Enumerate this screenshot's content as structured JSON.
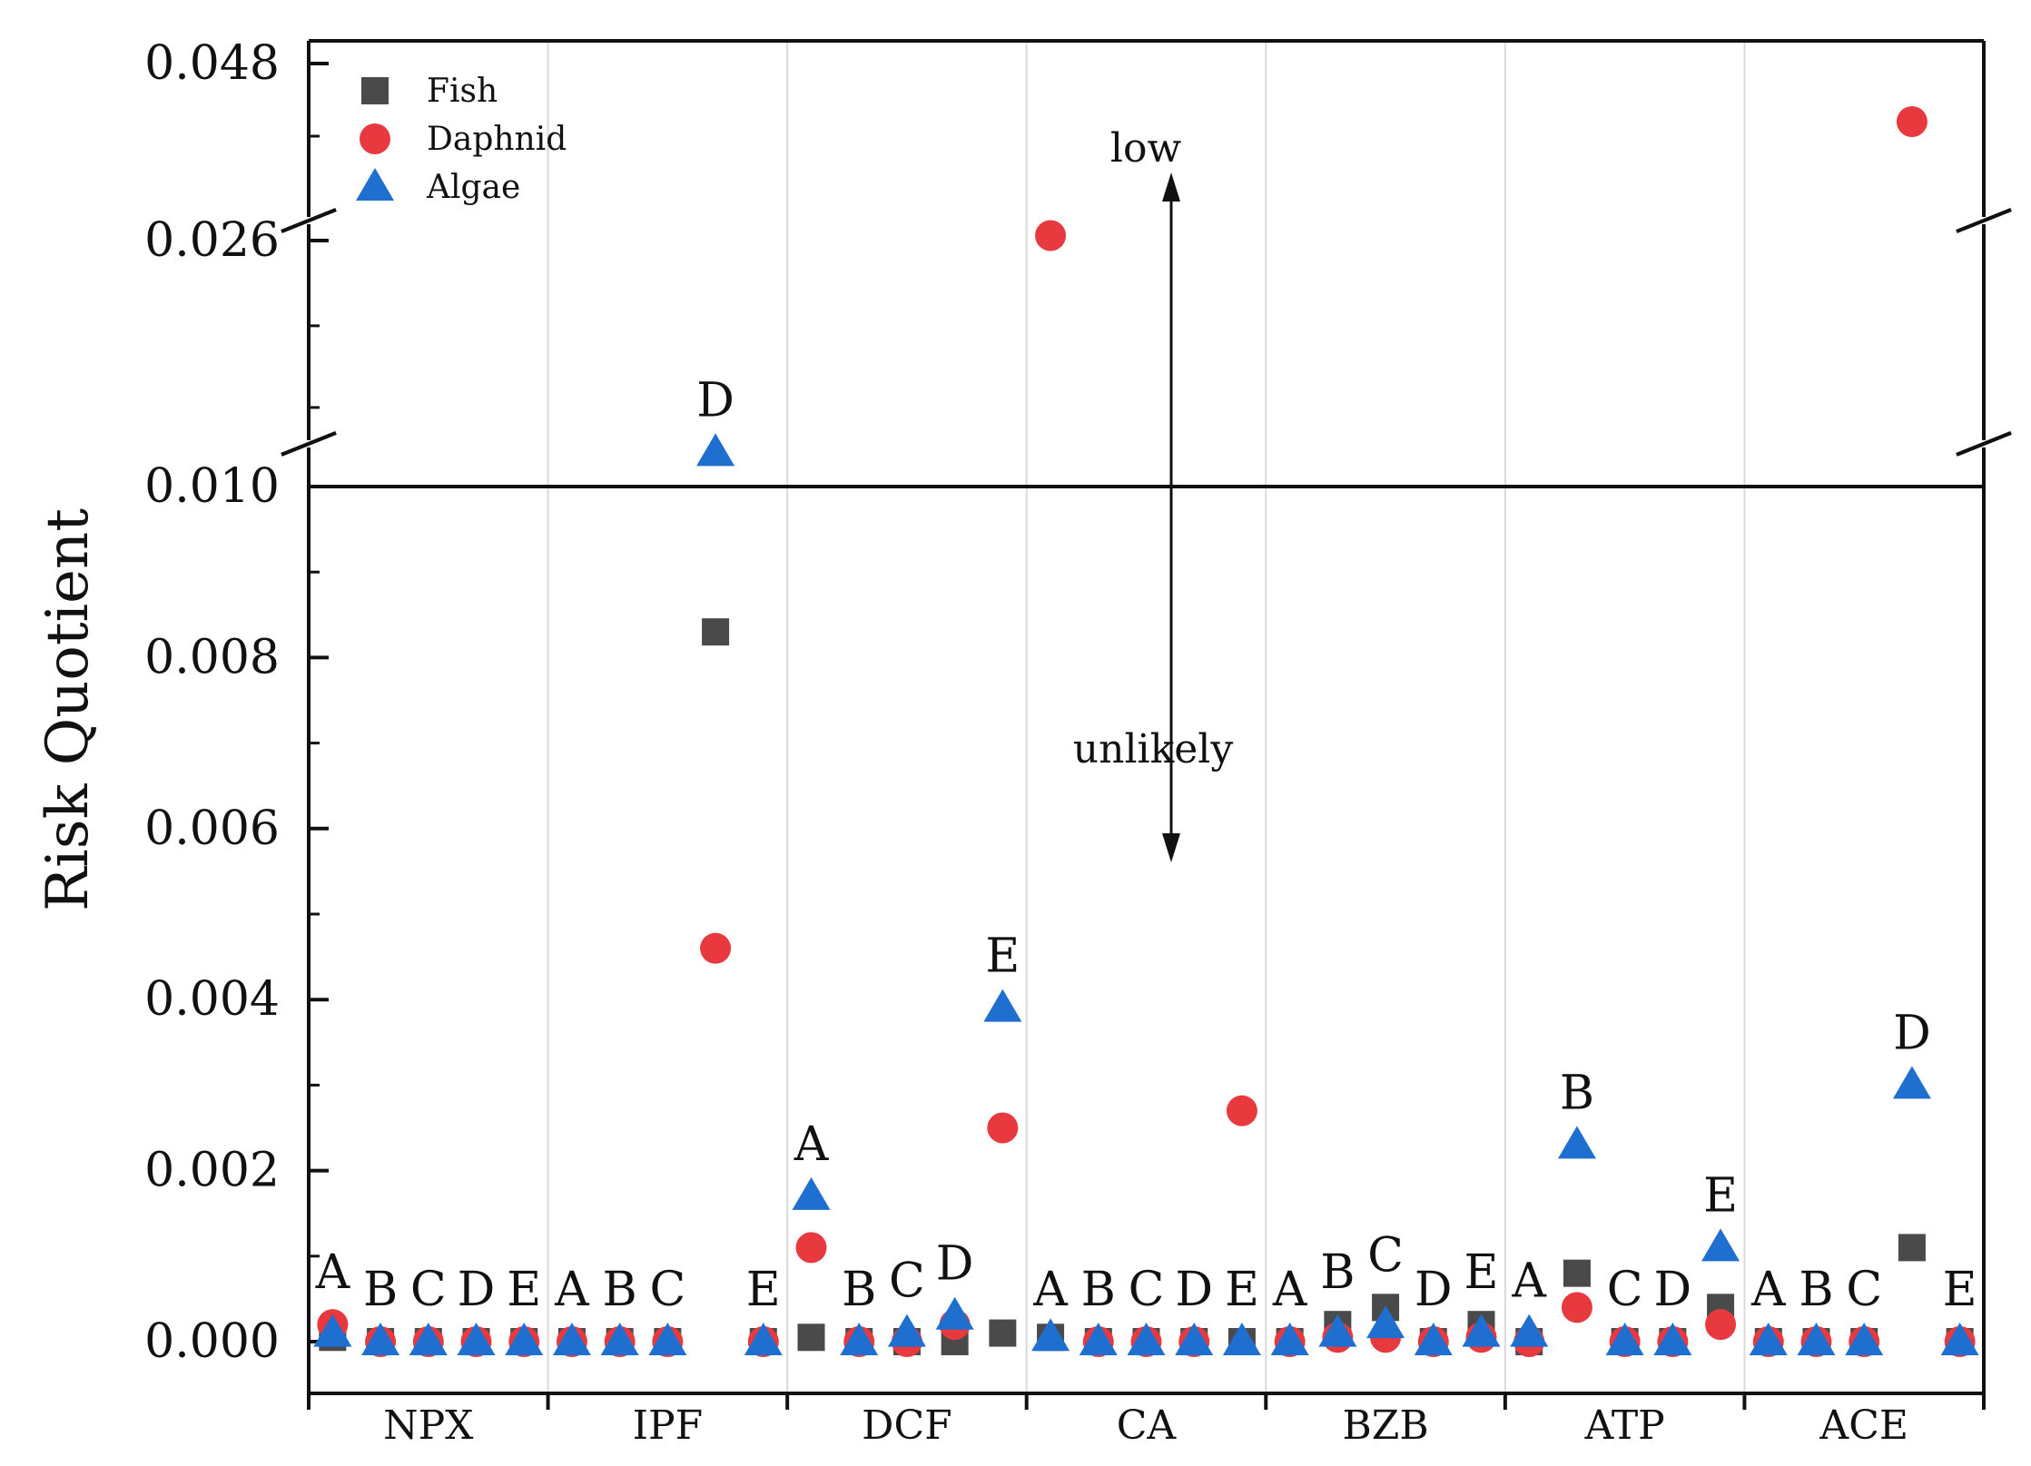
{
  "chart_data": {
    "type": "scatter",
    "ylabel": "Risk Quotient",
    "y_axis_breaks": [
      [
        0.0105,
        0.0225
      ],
      [
        0.028,
        0.046
      ]
    ],
    "y_ticks": [
      "0.000",
      "0.002",
      "0.004",
      "0.006",
      "0.008",
      "0.010",
      "0.026",
      "0.048"
    ],
    "y_tick_values": [
      0,
      0.002,
      0.004,
      0.006,
      0.008,
      0.01,
      0.026,
      0.048
    ],
    "threshold": 0.01,
    "categories": [
      "NPX",
      "IPF",
      "DCF",
      "CA",
      "BZB",
      "ATP",
      "ACE"
    ],
    "sites": [
      "A",
      "B",
      "C",
      "D",
      "E"
    ],
    "legend": {
      "placement": "top-left",
      "entries": [
        "Fish",
        "Daphnid",
        "Algae"
      ]
    },
    "annotations": {
      "low": "low",
      "unlikely": "unlikely"
    },
    "series": [
      {
        "name": "Fish",
        "marker": "square",
        "color": "#4a4a4a",
        "values": [
          [
            5e-05,
            0,
            0,
            0,
            0
          ],
          [
            0,
            0,
            0,
            0.0083,
            0
          ],
          [
            5e-05,
            0,
            0,
            0,
            0.0001
          ],
          [
            5e-05,
            0,
            0,
            0,
            0
          ],
          [
            0,
            0.0002,
            0.0004,
            0,
            0.0002
          ],
          [
            0,
            0.0008,
            0,
            0,
            0.0004
          ],
          [
            0,
            0,
            0,
            0.0011,
            0
          ]
        ]
      },
      {
        "name": "Daphnid",
        "marker": "circle",
        "color": "#e8393e",
        "values": [
          [
            0.0002,
            0,
            0,
            0,
            0
          ],
          [
            0,
            0,
            0,
            0.0046,
            0
          ],
          [
            0.0011,
            0,
            0,
            0.0002,
            0.0025
          ],
          [
            0.0265,
            0,
            0,
            0,
            0.0027
          ],
          [
            0,
            5e-05,
            5e-05,
            0,
            5e-05
          ],
          [
            0,
            0.0004,
            0,
            0,
            0.0002
          ],
          [
            0,
            0,
            0,
            0.0464,
            0
          ]
        ]
      },
      {
        "name": "Algae",
        "marker": "triangle",
        "color": "#1f6fd1",
        "values": [
          [
            0.0001,
            0,
            0,
            0,
            0
          ],
          [
            0,
            0,
            0,
            0.0104,
            0
          ],
          [
            0.0017,
            0,
            0.0001,
            0.0003,
            0.0039
          ],
          [
            5e-05,
            0,
            0,
            0,
            0
          ],
          [
            0,
            0.0001,
            0.0002,
            0,
            0.0001
          ],
          [
            0.0001,
            0.0023,
            0,
            0,
            0.0011
          ],
          [
            0,
            0,
            0,
            0.003,
            0
          ]
        ]
      }
    ],
    "site_labels": [
      {
        "category": "NPX",
        "site": "A",
        "text": "A",
        "value": 0.0002
      },
      {
        "category": "NPX",
        "site": "B",
        "text": "B",
        "value": 0
      },
      {
        "category": "NPX",
        "site": "C",
        "text": "C",
        "value": 0
      },
      {
        "category": "NPX",
        "site": "D",
        "text": "D",
        "value": 0
      },
      {
        "category": "NPX",
        "site": "E",
        "text": "E",
        "value": 0
      },
      {
        "category": "IPF",
        "site": "A",
        "text": "A",
        "value": 0
      },
      {
        "category": "IPF",
        "site": "B",
        "text": "B",
        "value": 0
      },
      {
        "category": "IPF",
        "site": "C",
        "text": "C",
        "value": 0
      },
      {
        "category": "IPF",
        "site": "D",
        "text": "D",
        "value": 0.0104
      },
      {
        "category": "IPF",
        "site": "E",
        "text": "E",
        "value": 0
      },
      {
        "category": "DCF",
        "site": "A",
        "text": "A",
        "value": 0.0017
      },
      {
        "category": "DCF",
        "site": "B",
        "text": "B",
        "value": 0
      },
      {
        "category": "DCF",
        "site": "C",
        "text": "C",
        "value": 0.0001
      },
      {
        "category": "DCF",
        "site": "D",
        "text": "D",
        "value": 0.0003
      },
      {
        "category": "DCF",
        "site": "E",
        "text": "E",
        "value": 0.0039
      },
      {
        "category": "CA",
        "site": "A",
        "text": "A",
        "value": 0
      },
      {
        "category": "CA",
        "site": "B",
        "text": "B",
        "value": 0
      },
      {
        "category": "CA",
        "site": "C",
        "text": "C",
        "value": 0
      },
      {
        "category": "CA",
        "site": "D",
        "text": "D",
        "value": 0
      },
      {
        "category": "CA",
        "site": "E",
        "text": "E",
        "value": 0
      },
      {
        "category": "BZB",
        "site": "A",
        "text": "A",
        "value": 0
      },
      {
        "category": "BZB",
        "site": "B",
        "text": "B",
        "value": 0.0002
      },
      {
        "category": "BZB",
        "site": "C",
        "text": "C",
        "value": 0.0004
      },
      {
        "category": "BZB",
        "site": "D",
        "text": "D",
        "value": 0
      },
      {
        "category": "BZB",
        "site": "E",
        "text": "E",
        "value": 0.0002
      },
      {
        "category": "ATP",
        "site": "A",
        "text": "A",
        "value": 0.0001
      },
      {
        "category": "ATP",
        "site": "B",
        "text": "B",
        "value": 0.0023
      },
      {
        "category": "ATP",
        "site": "C",
        "text": "C",
        "value": 0
      },
      {
        "category": "ATP",
        "site": "D",
        "text": "D",
        "value": 0
      },
      {
        "category": "ATP",
        "site": "E",
        "text": "E",
        "value": 0.0011
      },
      {
        "category": "ACE",
        "site": "A",
        "text": "A",
        "value": 0
      },
      {
        "category": "ACE",
        "site": "B",
        "text": "B",
        "value": 0
      },
      {
        "category": "ACE",
        "site": "C",
        "text": "C",
        "value": 0
      },
      {
        "category": "ACE",
        "site": "D",
        "text": "D",
        "value": 0.003
      },
      {
        "category": "ACE",
        "site": "E",
        "text": "E",
        "value": 0
      }
    ]
  }
}
